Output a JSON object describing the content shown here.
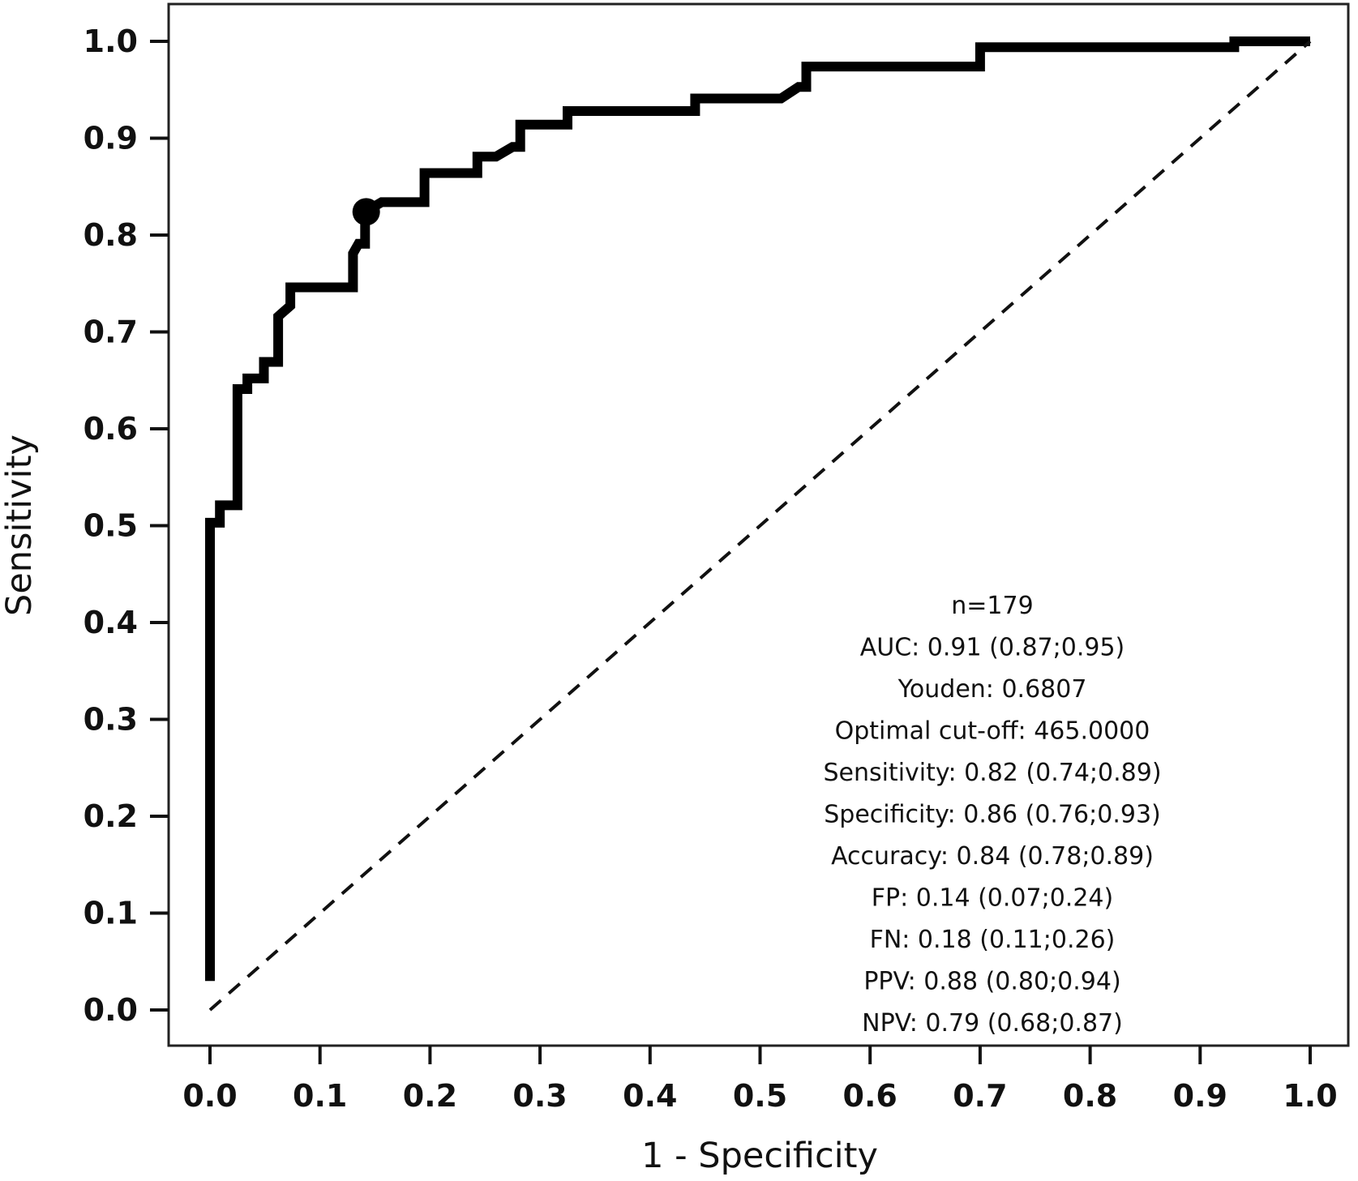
{
  "figure": {
    "background": "#ffffff",
    "frame_color": "#222222",
    "curve_color": "#000000",
    "diagonal_color": "#111111",
    "marker_color": "#000000"
  },
  "chart_data": {
    "type": "line",
    "subtype": "roc-step-curve",
    "title": "",
    "xlabel": "1 - Specificity",
    "ylabel": "Sensitivity",
    "xlim": [
      0.0,
      1.0
    ],
    "ylim": [
      0.0,
      1.0
    ],
    "grid": "off",
    "x_ticks": [
      "0.0",
      "0.1",
      "0.2",
      "0.3",
      "0.4",
      "0.5",
      "0.6",
      "0.7",
      "0.8",
      "0.9",
      "1.0"
    ],
    "y_ticks": [
      "0.0",
      "0.1",
      "0.2",
      "0.3",
      "0.4",
      "0.5",
      "0.6",
      "0.7",
      "0.8",
      "0.9",
      "1.0"
    ],
    "series": [
      {
        "name": "ROC curve",
        "style": "solid-step",
        "points": [
          [
            0.0,
            0.03
          ],
          [
            0.0,
            0.503
          ],
          [
            0.009,
            0.503
          ],
          [
            0.009,
            0.521
          ],
          [
            0.025,
            0.521
          ],
          [
            0.025,
            0.641
          ],
          [
            0.034,
            0.641
          ],
          [
            0.034,
            0.652
          ],
          [
            0.049,
            0.652
          ],
          [
            0.049,
            0.669
          ],
          [
            0.062,
            0.669
          ],
          [
            0.062,
            0.716
          ],
          [
            0.073,
            0.727
          ],
          [
            0.073,
            0.746
          ],
          [
            0.13,
            0.746
          ],
          [
            0.13,
            0.781
          ],
          [
            0.135,
            0.791
          ],
          [
            0.141,
            0.791
          ],
          [
            0.141,
            0.824
          ],
          [
            0.156,
            0.834
          ],
          [
            0.195,
            0.834
          ],
          [
            0.195,
            0.864
          ],
          [
            0.243,
            0.864
          ],
          [
            0.243,
            0.881
          ],
          [
            0.26,
            0.881
          ],
          [
            0.275,
            0.891
          ],
          [
            0.282,
            0.891
          ],
          [
            0.282,
            0.914
          ],
          [
            0.325,
            0.914
          ],
          [
            0.325,
            0.928
          ],
          [
            0.441,
            0.928
          ],
          [
            0.441,
            0.941
          ],
          [
            0.519,
            0.941
          ],
          [
            0.535,
            0.953
          ],
          [
            0.542,
            0.953
          ],
          [
            0.542,
            0.974
          ],
          [
            0.7,
            0.974
          ],
          [
            0.7,
            0.994
          ],
          [
            0.931,
            0.994
          ],
          [
            0.931,
            1.0
          ],
          [
            1.0,
            1.0
          ]
        ]
      },
      {
        "name": "Chance diagonal",
        "style": "dashed",
        "points": [
          [
            0.0,
            0.0
          ],
          [
            1.0,
            1.0
          ]
        ]
      }
    ],
    "optimal_point": {
      "x": 0.142,
      "y": 0.824
    },
    "annotations": [
      "n=179",
      "AUC: 0.91 (0.87;0.95)",
      "Youden: 0.6807",
      "Optimal cut-off: 465.0000",
      "Sensitivity: 0.82 (0.74;0.89)",
      "Specificity: 0.86 (0.76;0.93)",
      "Accuracy: 0.84 (0.78;0.89)",
      "FP: 0.14 (0.07;0.24)",
      "FN: 0.18 (0.11;0.26)",
      "PPV: 0.88 (0.80;0.94)",
      "NPV: 0.79 (0.68;0.87)"
    ]
  }
}
